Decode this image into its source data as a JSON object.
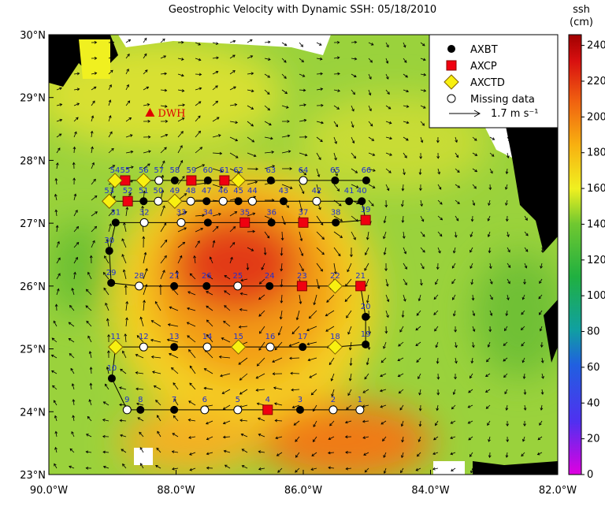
{
  "title": "Geostrophic Velocity with Dynamic SSH: 05/18/2010",
  "xlim": [
    -90,
    -82
  ],
  "ylim": [
    23,
    30
  ],
  "xticks": [
    {
      "value": -90,
      "label": "90.0°W"
    },
    {
      "value": -88,
      "label": "88.0°W"
    },
    {
      "value": -86,
      "label": "86.0°W"
    },
    {
      "value": -84,
      "label": "84.0°W"
    },
    {
      "value": -82,
      "label": "82.0°W"
    }
  ],
  "yticks": [
    {
      "value": 30,
      "label": "30°N"
    },
    {
      "value": 29,
      "label": "29°N"
    },
    {
      "value": 28,
      "label": "28°N"
    },
    {
      "value": 27,
      "label": "27°N"
    },
    {
      "value": 26,
      "label": "26°N"
    },
    {
      "value": 25,
      "label": "25°N"
    },
    {
      "value": 24,
      "label": "24°N"
    },
    {
      "value": 23,
      "label": "23°N"
    }
  ],
  "colorbar": {
    "label": [
      "ssh",
      "(cm)"
    ],
    "lim": [
      0,
      246
    ],
    "ticks": [
      0,
      20,
      40,
      60,
      80,
      100,
      120,
      140,
      160,
      180,
      200,
      220,
      240
    ]
  },
  "site": {
    "label": "DWH",
    "lon": -88.41,
    "lat": 28.76
  },
  "vector_key": "1.7 m s⁻¹",
  "series": [
    {
      "name": "AXBT",
      "stations": [
        {
          "label": "3",
          "lon": -86.05,
          "lat": 24.03
        },
        {
          "label": "7",
          "lon": -88.03,
          "lat": 24.03
        },
        {
          "label": "8",
          "lon": -88.56,
          "lat": 24.03
        },
        {
          "label": "10",
          "lon": -89.01,
          "lat": 24.53
        },
        {
          "label": "13",
          "lon": -88.03,
          "lat": 25.03
        },
        {
          "label": "17",
          "lon": -86.01,
          "lat": 25.03
        },
        {
          "label": "19",
          "lon": -85.02,
          "lat": 25.07
        },
        {
          "label": "20",
          "lon": -85.02,
          "lat": 25.51
        },
        {
          "label": "24",
          "lon": -86.53,
          "lat": 26.0
        },
        {
          "label": "26",
          "lon": -87.52,
          "lat": 26.0
        },
        {
          "label": "27",
          "lon": -88.03,
          "lat": 26.0
        },
        {
          "label": "29",
          "lon": -89.02,
          "lat": 26.05
        },
        {
          "label": "30",
          "lon": -89.05,
          "lat": 26.56
        },
        {
          "label": "31",
          "lon": -88.95,
          "lat": 27.01
        },
        {
          "label": "34",
          "lon": -87.5,
          "lat": 27.01
        },
        {
          "label": "36",
          "lon": -86.5,
          "lat": 27.01
        },
        {
          "label": "38",
          "lon": -85.49,
          "lat": 27.01
        },
        {
          "label": "40",
          "lon": -85.08,
          "lat": 27.35
        },
        {
          "label": "41",
          "lon": -85.28,
          "lat": 27.35
        },
        {
          "label": "43",
          "lon": -86.31,
          "lat": 27.35
        },
        {
          "label": "45",
          "lon": -87.02,
          "lat": 27.35
        },
        {
          "label": "47",
          "lon": -87.52,
          "lat": 27.35
        },
        {
          "label": "51",
          "lon": -88.51,
          "lat": 27.35
        },
        {
          "label": "58",
          "lon": -88.02,
          "lat": 27.68
        },
        {
          "label": "60",
          "lon": -87.5,
          "lat": 27.68
        },
        {
          "label": "63",
          "lon": -86.51,
          "lat": 27.68
        },
        {
          "label": "65",
          "lon": -85.5,
          "lat": 27.68
        },
        {
          "label": "66",
          "lon": -85.01,
          "lat": 27.68
        }
      ]
    },
    {
      "name": "AXCP",
      "stations": [
        {
          "label": "4",
          "lon": -86.56,
          "lat": 24.03
        },
        {
          "label": "21",
          "lon": -85.1,
          "lat": 26.0
        },
        {
          "label": "23",
          "lon": -86.02,
          "lat": 26.0
        },
        {
          "label": "35",
          "lon": -86.92,
          "lat": 27.01
        },
        {
          "label": "37",
          "lon": -86.0,
          "lat": 27.01
        },
        {
          "label": "39",
          "lon": -85.02,
          "lat": 27.05
        },
        {
          "label": "52",
          "lon": -88.76,
          "lat": 27.35
        },
        {
          "label": "55",
          "lon": -88.8,
          "lat": 27.68
        },
        {
          "label": "59",
          "lon": -87.76,
          "lat": 27.68
        },
        {
          "label": "61",
          "lon": -87.24,
          "lat": 27.68
        }
      ]
    },
    {
      "name": "AXCTD",
      "stations": [
        {
          "label": "11",
          "lon": -88.95,
          "lat": 25.03
        },
        {
          "label": "15",
          "lon": -87.02,
          "lat": 25.03
        },
        {
          "label": "18",
          "lon": -85.5,
          "lat": 25.03
        },
        {
          "label": "22",
          "lon": -85.5,
          "lat": 26.0
        },
        {
          "label": "49",
          "lon": -88.02,
          "lat": 27.35
        },
        {
          "label": "53",
          "lon": -89.05,
          "lat": 27.35
        },
        {
          "label": "54",
          "lon": -88.96,
          "lat": 27.68
        },
        {
          "label": "56",
          "lon": -88.51,
          "lat": 27.68
        },
        {
          "label": "62",
          "lon": -87.02,
          "lat": 27.68
        }
      ]
    },
    {
      "name": "Missing data",
      "stations": [
        {
          "label": "1",
          "lon": -85.11,
          "lat": 24.03
        },
        {
          "label": "2",
          "lon": -85.53,
          "lat": 24.03
        },
        {
          "label": "5",
          "lon": -87.03,
          "lat": 24.03
        },
        {
          "label": "6",
          "lon": -87.55,
          "lat": 24.03
        },
        {
          "label": "9",
          "lon": -88.77,
          "lat": 24.03
        },
        {
          "label": "12",
          "lon": -88.51,
          "lat": 25.03
        },
        {
          "label": "14",
          "lon": -87.51,
          "lat": 25.03
        },
        {
          "label": "16",
          "lon": -86.52,
          "lat": 25.03
        },
        {
          "label": "25",
          "lon": -87.03,
          "lat": 26.0
        },
        {
          "label": "28",
          "lon": -88.58,
          "lat": 26.0
        },
        {
          "label": "32",
          "lon": -88.5,
          "lat": 27.01
        },
        {
          "label": "33",
          "lon": -87.92,
          "lat": 27.01
        },
        {
          "label": "42",
          "lon": -85.79,
          "lat": 27.35
        },
        {
          "label": "44",
          "lon": -86.8,
          "lat": 27.35
        },
        {
          "label": "46",
          "lon": -87.26,
          "lat": 27.35
        },
        {
          "label": "48",
          "lon": -87.77,
          "lat": 27.35
        },
        {
          "label": "50",
          "lon": -88.28,
          "lat": 27.35
        },
        {
          "label": "57",
          "lon": -88.27,
          "lat": 27.68
        },
        {
          "label": "64",
          "lon": -86.0,
          "lat": 27.68
        }
      ]
    }
  ]
}
